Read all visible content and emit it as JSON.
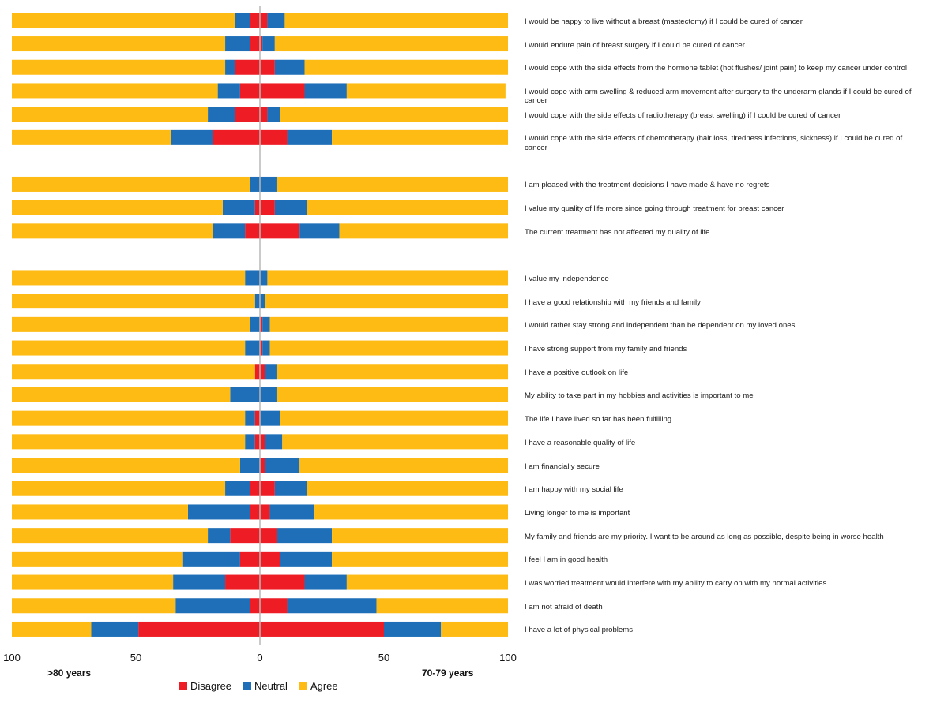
{
  "chart_data": {
    "type": "diverging-stacked-bar",
    "axis": {
      "ticks": [
        "100",
        "50",
        "0",
        "50",
        "100"
      ],
      "left_label": ">80 years",
      "right_label": "70-79 years"
    },
    "legend": [
      {
        "key": "disagree",
        "label": "Disagree",
        "color": "#ee1c25"
      },
      {
        "key": "neutral",
        "label": "Neutral",
        "color": "#1f6fb8"
      },
      {
        "key": "agree",
        "label": "Agree",
        "color": "#fdbb13"
      }
    ],
    "rows": [
      {
        "label": "I would be happy  to live without  a breast (mastectomy) if I could be cured of cancer",
        "left": {
          "disagree": 4,
          "neutral": 6,
          "agree": 90
        },
        "right": {
          "disagree": 3,
          "neutral": 7,
          "agree": 90
        }
      },
      {
        "label": "I would endure pain of breast surgery if I could be cured of cancer",
        "left": {
          "disagree": 4,
          "neutral": 10,
          "agree": 86
        },
        "right": {
          "disagree": 1,
          "neutral": 5,
          "agree": 94
        }
      },
      {
        "label": "I would cope with the side effects from the hormone tablet (hot flushes/ joint pain) to keep my cancer under control",
        "left": {
          "disagree": 10,
          "neutral": 4,
          "agree": 86
        },
        "right": {
          "disagree": 6,
          "neutral": 12,
          "agree": 82
        }
      },
      {
        "label": "I would cope with arm swelling  & reduced arm movement after surgery to the underarm glands if I could be cured of cancer",
        "left": {
          "disagree": 8,
          "neutral": 9,
          "agree": 83
        },
        "right": {
          "disagree": 18,
          "neutral": 17,
          "agree": 64
        }
      },
      {
        "label": "I would cope with the side effects of radiotherapy (breast swelling)  if I could be cured of cancer",
        "left": {
          "disagree": 10,
          "neutral": 11,
          "agree": 79
        },
        "right": {
          "disagree": 3,
          "neutral": 5,
          "agree": 92
        }
      },
      {
        "label": "I would cope with the side effects of chemotherapy (hair loss, tiredness infections, sickness) if I could be cured of cancer",
        "left": {
          "disagree": 19,
          "neutral": 17,
          "agree": 64
        },
        "right": {
          "disagree": 11,
          "neutral": 18,
          "agree": 71
        }
      },
      {
        "gap": true
      },
      {
        "label": "I am pleased with the treatment decisions  I have made & have no regrets",
        "left": {
          "disagree": 0,
          "neutral": 4,
          "agree": 96
        },
        "right": {
          "disagree": 0,
          "neutral": 7,
          "agree": 93
        }
      },
      {
        "label": "I value my quality of life more since going through treatment for breast cancer",
        "left": {
          "disagree": 2,
          "neutral": 13,
          "agree": 85
        },
        "right": {
          "disagree": 6,
          "neutral": 13,
          "agree": 81
        }
      },
      {
        "label": "The current treatment has  not affected my quality of life",
        "left": {
          "disagree": 6,
          "neutral": 13,
          "agree": 81
        },
        "right": {
          "disagree": 16,
          "neutral": 16,
          "agree": 68
        }
      },
      {
        "gap": true
      },
      {
        "label": "I value my independence",
        "left": {
          "disagree": 0,
          "neutral": 6,
          "agree": 94
        },
        "right": {
          "disagree": 0,
          "neutral": 3,
          "agree": 97
        }
      },
      {
        "label": "I have a good relationship  with my friends  and family",
        "left": {
          "disagree": 0,
          "neutral": 2,
          "agree": 98
        },
        "right": {
          "disagree": 0,
          "neutral": 2,
          "agree": 98
        }
      },
      {
        "label": "I would rather stay strong and independent than be dependent on my loved ones",
        "left": {
          "disagree": 0,
          "neutral": 4,
          "agree": 96
        },
        "right": {
          "disagree": 1,
          "neutral": 3,
          "agree": 96
        }
      },
      {
        "label": "I have strong support from my family and friends",
        "left": {
          "disagree": 0,
          "neutral": 6,
          "agree": 94
        },
        "right": {
          "disagree": 1,
          "neutral": 3,
          "agree": 96
        }
      },
      {
        "label": "I have a positive  outlook on life",
        "left": {
          "disagree": 2,
          "neutral": 0,
          "agree": 98
        },
        "right": {
          "disagree": 2,
          "neutral": 5,
          "agree": 93
        }
      },
      {
        "label": "My ability to take part in my hobbies  and activities is important to me",
        "left": {
          "disagree": 0,
          "neutral": 12,
          "agree": 88
        },
        "right": {
          "disagree": 0,
          "neutral": 7,
          "agree": 93
        }
      },
      {
        "label": "The life  I have lived so far has been fulfilling",
        "left": {
          "disagree": 2,
          "neutral": 4,
          "agree": 94
        },
        "right": {
          "disagree": 0,
          "neutral": 8,
          "agree": 92
        }
      },
      {
        "label": "I have a reasonable  quality of life",
        "left": {
          "disagree": 2,
          "neutral": 4,
          "agree": 94
        },
        "right": {
          "disagree": 2,
          "neutral": 7,
          "agree": 91
        }
      },
      {
        "label": "I am financially secure",
        "left": {
          "disagree": 0,
          "neutral": 8,
          "agree": 92
        },
        "right": {
          "disagree": 2,
          "neutral": 14,
          "agree": 84
        }
      },
      {
        "label": "I am happy with my social life",
        "left": {
          "disagree": 4,
          "neutral": 10,
          "agree": 86
        },
        "right": {
          "disagree": 6,
          "neutral": 13,
          "agree": 81
        }
      },
      {
        "label": "Living longer to me is important",
        "left": {
          "disagree": 4,
          "neutral": 25,
          "agree": 71
        },
        "right": {
          "disagree": 4,
          "neutral": 18,
          "agree": 78
        }
      },
      {
        "label": "My family and friends are my priority. I want to be around as long as possible,  despite being in worse health",
        "left": {
          "disagree": 12,
          "neutral": 9,
          "agree": 79
        },
        "right": {
          "disagree": 7,
          "neutral": 22,
          "agree": 71
        }
      },
      {
        "label": "I feel I am in good health",
        "left": {
          "disagree": 8,
          "neutral": 23,
          "agree": 69
        },
        "right": {
          "disagree": 8,
          "neutral": 21,
          "agree": 71
        }
      },
      {
        "label": "I was worried treatment would interfere with my ability to carry on with my normal activities",
        "left": {
          "disagree": 14,
          "neutral": 21,
          "agree": 65
        },
        "right": {
          "disagree": 18,
          "neutral": 17,
          "agree": 65
        }
      },
      {
        "label": "I am not afraid of death",
        "left": {
          "disagree": 4,
          "neutral": 30,
          "agree": 66
        },
        "right": {
          "disagree": 11,
          "neutral": 36,
          "agree": 53
        }
      },
      {
        "label": "I have a lot of physical problems",
        "left": {
          "disagree": 49,
          "neutral": 19,
          "agree": 32
        },
        "right": {
          "disagree": 50,
          "neutral": 23,
          "agree": 27
        }
      }
    ]
  }
}
